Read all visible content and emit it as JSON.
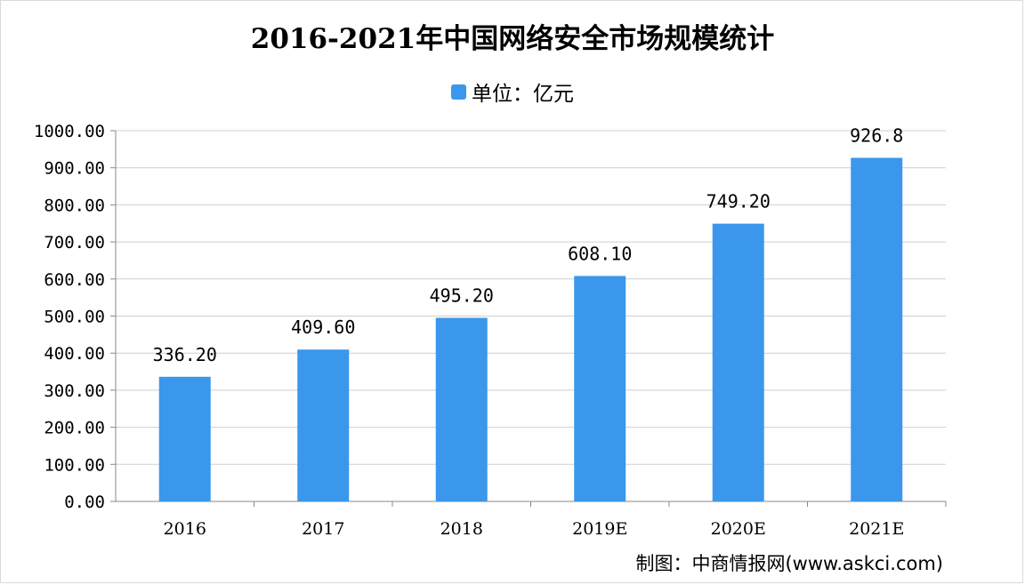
{
  "chart_data": {
    "type": "bar",
    "title": "2016-2021年中国网络安全市场规模统计",
    "legend": "单位：亿元",
    "legend_placement": "top-center",
    "categories": [
      "2016",
      "2017",
      "2018",
      "2019E",
      "2020E",
      "2021E"
    ],
    "values": [
      336.2,
      409.6,
      495.2,
      608.1,
      749.2,
      926.8
    ],
    "data_labels": [
      "336.20",
      "409.60",
      "495.20",
      "608.10",
      "749.20",
      "926.8"
    ],
    "y_ticks": [
      "0.00",
      "100.00",
      "200.00",
      "300.00",
      "400.00",
      "500.00",
      "600.00",
      "700.00",
      "800.00",
      "900.00",
      "1000.00"
    ],
    "ylim": [
      0,
      1000
    ],
    "grid": true,
    "bar_color": "#3a97ec"
  },
  "footer": "制图：中商情报网(www.askci.com)"
}
